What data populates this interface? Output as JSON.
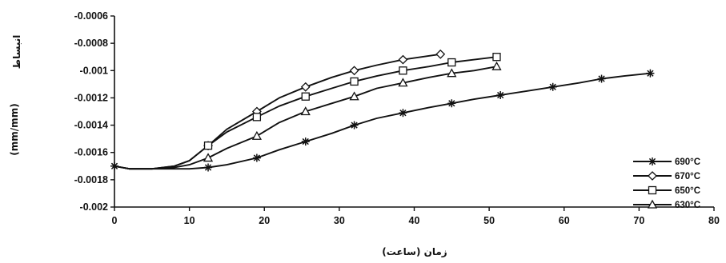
{
  "chart_data": {
    "type": "line",
    "title": "",
    "xlabel": "زمان (ساعت)",
    "ylabel_unit": "(mm/mm)",
    "ylabel_word": "انبساط",
    "xlim": [
      0,
      80
    ],
    "ylim": [
      -0.002,
      -0.0006
    ],
    "x_ticks": [
      0,
      10,
      20,
      30,
      40,
      50,
      60,
      70,
      80
    ],
    "x_tick_labels": [
      "0",
      "10",
      "20",
      "30",
      "40",
      "50",
      "60",
      "70",
      "80"
    ],
    "y_ticks": [
      -0.0006,
      -0.0008,
      -0.001,
      -0.0012,
      -0.0014,
      -0.0016,
      -0.0018,
      -0.002
    ],
    "y_tick_labels": [
      "-0.0006",
      "-0.0008",
      "-0.001",
      "-0.0012",
      "-0.0014",
      "-0.0016",
      "-0.0018",
      "-0.002"
    ],
    "grid": false,
    "legend_position": "bottom-right",
    "series": [
      {
        "name": "690°C",
        "marker": "star",
        "color": "#111111",
        "curve_x": [
          0,
          1,
          2,
          3,
          5,
          8,
          10,
          12.5,
          15,
          19,
          22,
          25.5,
          29,
          32,
          35,
          38.5,
          42,
          45,
          48,
          51.5,
          55,
          58.5,
          62,
          65,
          68,
          71.5
        ],
        "curve_y": [
          -0.0017,
          -0.00171,
          -0.00172,
          -0.00172,
          -0.00172,
          -0.00172,
          -0.00172,
          -0.00171,
          -0.00169,
          -0.00164,
          -0.00158,
          -0.00152,
          -0.00146,
          -0.0014,
          -0.00135,
          -0.00131,
          -0.00127,
          -0.00124,
          -0.00121,
          -0.00118,
          -0.00115,
          -0.00112,
          -0.00109,
          -0.00106,
          -0.00104,
          -0.00102
        ],
        "marker_x": [
          0,
          12.5,
          19,
          25.5,
          32,
          38.5,
          45,
          51.5,
          58.5,
          65,
          71.5
        ],
        "marker_y": [
          -0.0017,
          -0.00171,
          -0.00164,
          -0.00152,
          -0.0014,
          -0.00131,
          -0.00124,
          -0.00118,
          -0.00112,
          -0.00106,
          -0.00102
        ]
      },
      {
        "name": "670°C",
        "marker": "diamond",
        "color": "#111111",
        "curve_x": [
          0,
          1,
          2,
          3,
          5,
          8,
          10,
          12.5,
          15,
          19,
          22,
          25.5,
          29,
          32,
          35,
          38.5,
          41,
          43.5
        ],
        "curve_y": [
          -0.0017,
          -0.00171,
          -0.00172,
          -0.00172,
          -0.00172,
          -0.0017,
          -0.00166,
          -0.00155,
          -0.00143,
          -0.0013,
          -0.0012,
          -0.00112,
          -0.00105,
          -0.001,
          -0.00096,
          -0.00092,
          -0.0009,
          -0.00088
        ],
        "marker_x": [
          12.5,
          19,
          25.5,
          32,
          38.5,
          43.5
        ],
        "marker_y": [
          -0.00155,
          -0.0013,
          -0.00112,
          -0.001,
          -0.00092,
          -0.00088
        ]
      },
      {
        "name": "650°C",
        "marker": "square",
        "color": "#111111",
        "curve_x": [
          0,
          1,
          2,
          3,
          5,
          8,
          10,
          12.5,
          15,
          19,
          22,
          25.5,
          29,
          32,
          35,
          38.5,
          42,
          45,
          48,
          51
        ],
        "curve_y": [
          -0.0017,
          -0.00171,
          -0.00172,
          -0.00172,
          -0.00172,
          -0.0017,
          -0.00166,
          -0.00155,
          -0.00145,
          -0.00134,
          -0.00126,
          -0.00119,
          -0.00113,
          -0.00108,
          -0.00104,
          -0.001,
          -0.00097,
          -0.00094,
          -0.00092,
          -0.0009
        ],
        "marker_x": [
          12.5,
          19,
          25.5,
          32,
          38.5,
          45,
          51
        ],
        "marker_y": [
          -0.00155,
          -0.00134,
          -0.00119,
          -0.00108,
          -0.001,
          -0.00094,
          -0.0009
        ]
      },
      {
        "name": "630°C",
        "marker": "triangle",
        "color": "#111111",
        "curve_x": [
          0,
          1,
          2,
          3,
          5,
          8,
          10,
          12.5,
          15,
          19,
          22,
          25.5,
          29,
          32,
          35,
          38.5,
          42,
          45,
          48,
          51
        ],
        "curve_y": [
          -0.0017,
          -0.00171,
          -0.00172,
          -0.00172,
          -0.00172,
          -0.00171,
          -0.00169,
          -0.00164,
          -0.00157,
          -0.00148,
          -0.00138,
          -0.0013,
          -0.00124,
          -0.00119,
          -0.00113,
          -0.00109,
          -0.00105,
          -0.00102,
          -0.001,
          -0.00097
        ],
        "marker_x": [
          12.5,
          19,
          25.5,
          32,
          38.5,
          45,
          51
        ],
        "marker_y": [
          -0.00164,
          -0.00148,
          -0.0013,
          -0.00119,
          -0.00109,
          -0.00102,
          -0.00097
        ]
      }
    ]
  }
}
